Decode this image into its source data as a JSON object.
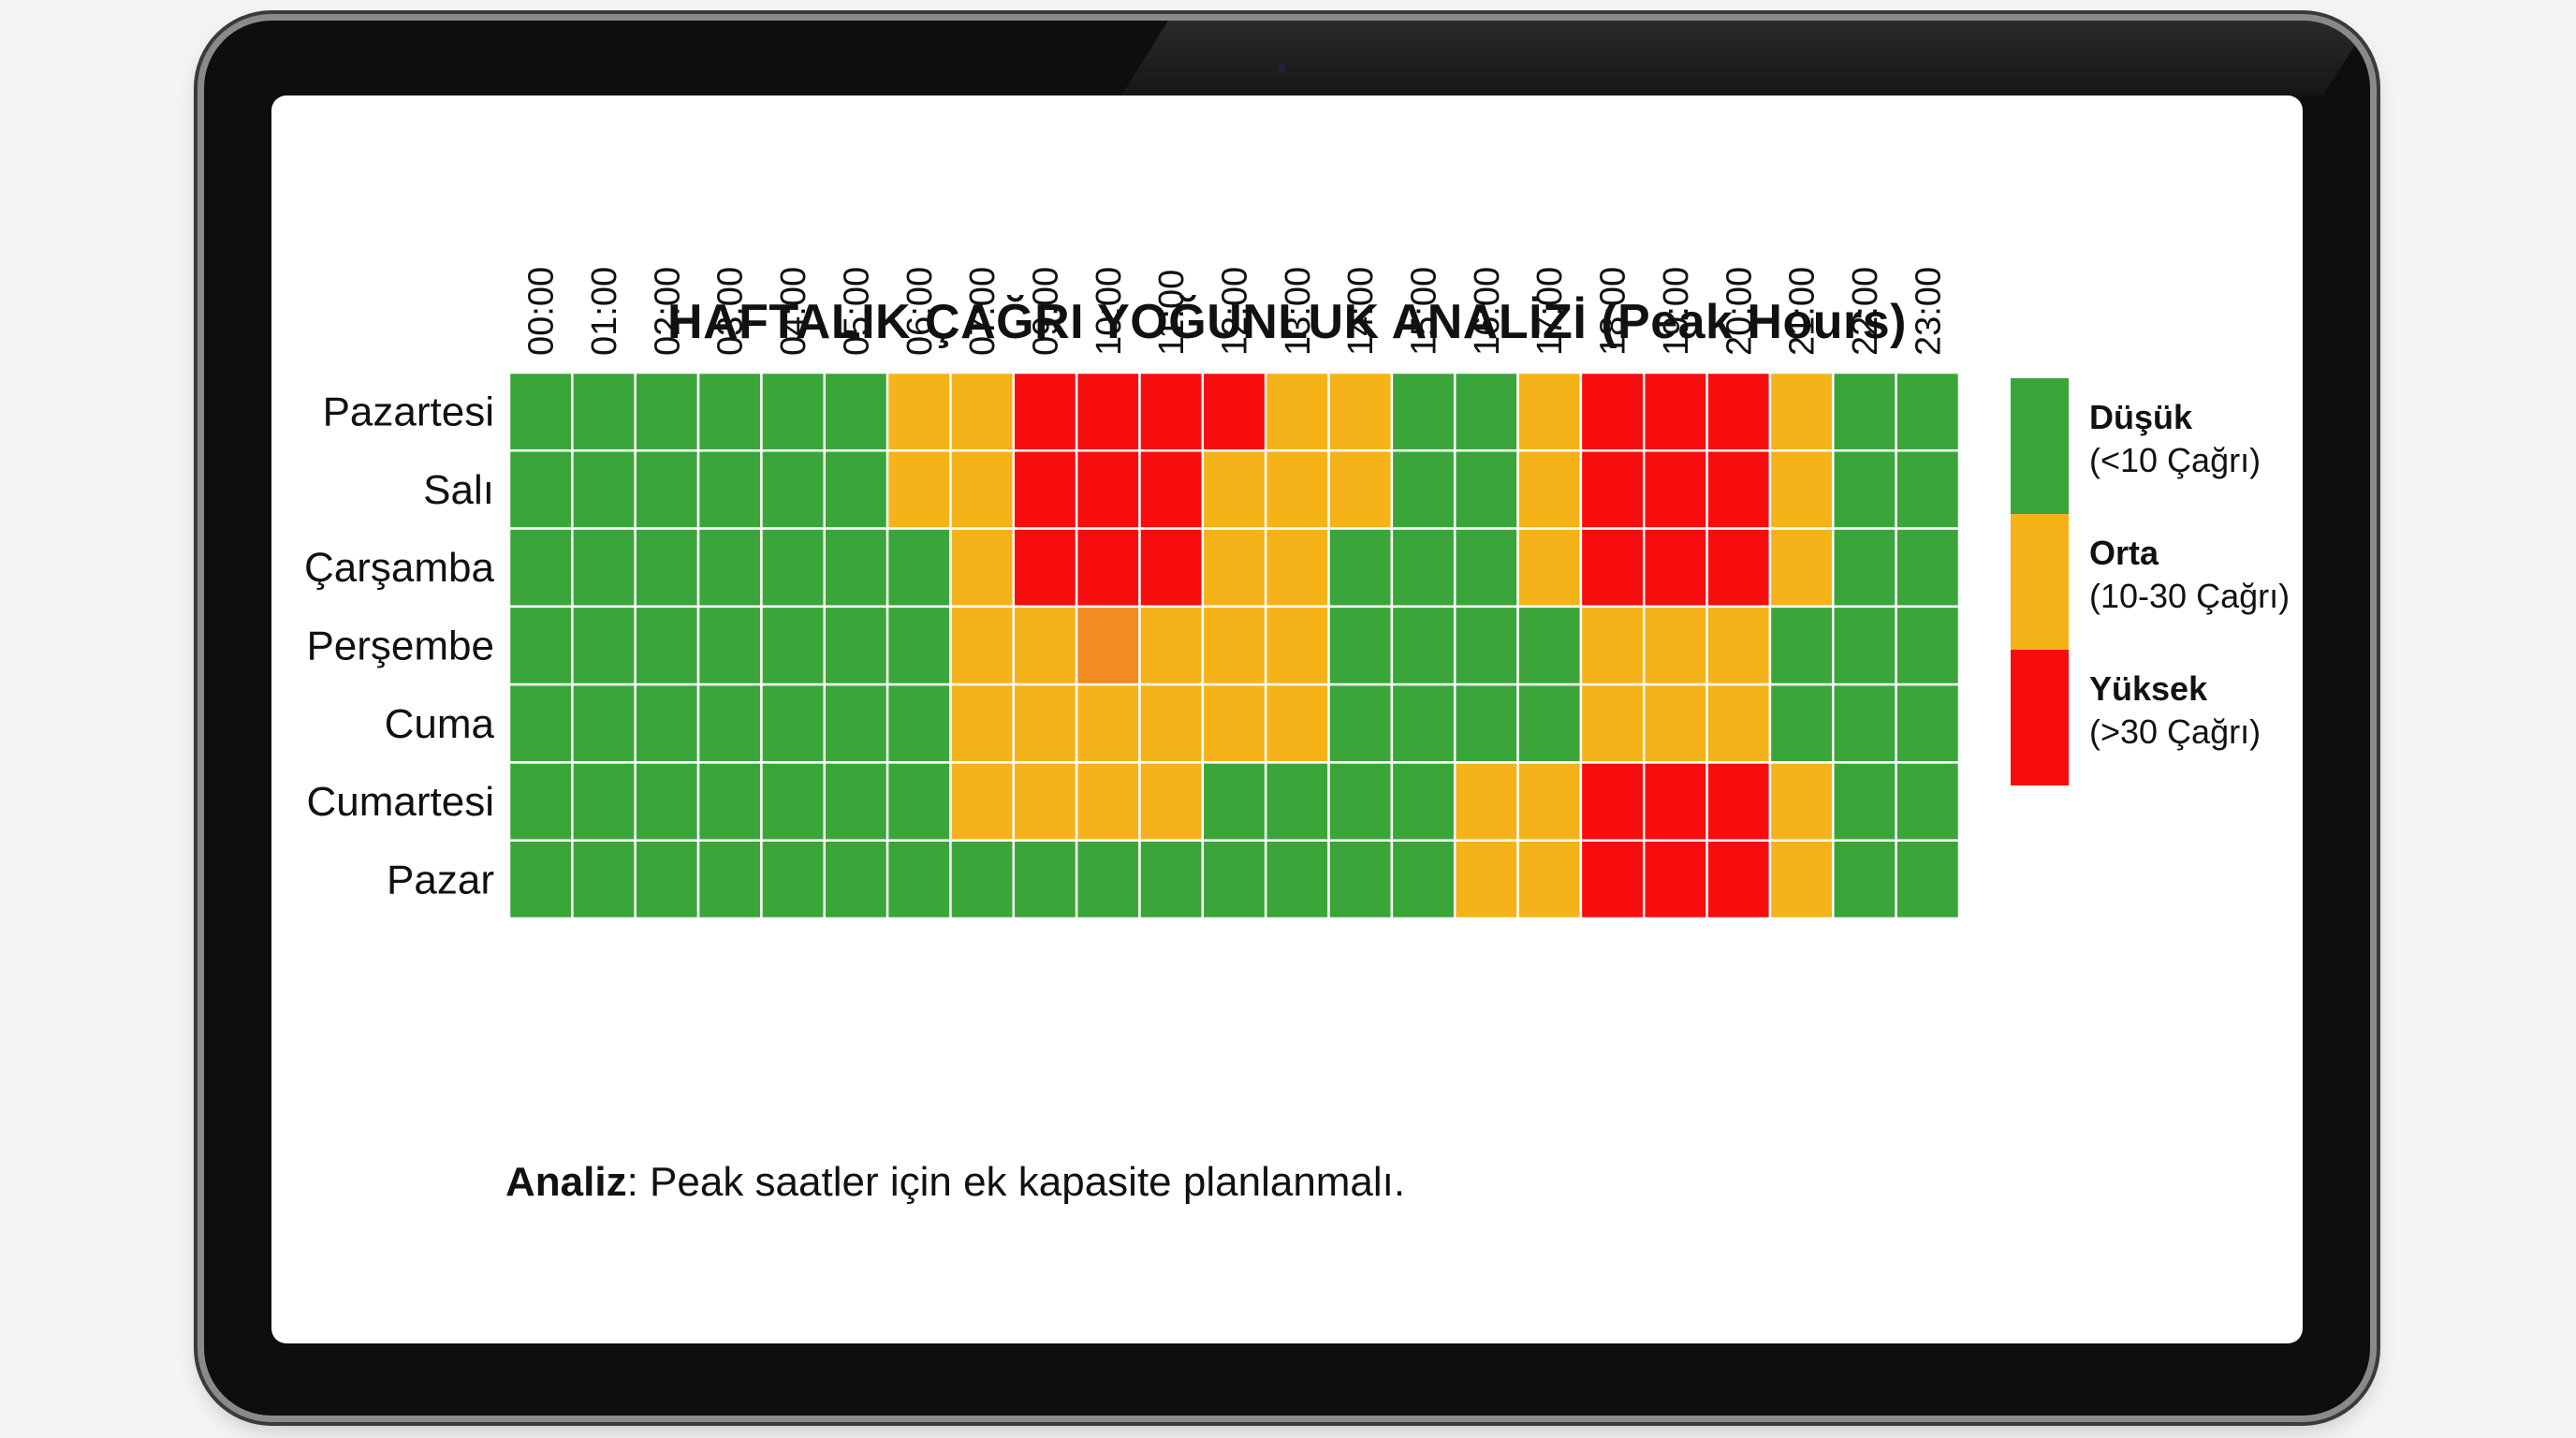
{
  "chart_data": {
    "type": "heatmap",
    "title": "HAFTALIK ÇAĞRI YOĞUNLUK ANALİZİ (Peak Hours)",
    "x_labels": [
      "00:00",
      "01:00",
      "02:00",
      "03:00",
      "04:00",
      "05:00",
      "06:00",
      "07:00",
      "09:00",
      "10:00",
      "11:00",
      "12:00",
      "13:00",
      "14:00",
      "15:00",
      "16:00",
      "17:00",
      "18:00",
      "19:00",
      "20:00",
      "21:00",
      "22:00",
      "23:00"
    ],
    "y_labels": [
      "Pazartesi",
      "Salı",
      "Çarşamba",
      "Perşembe",
      "Cuma",
      "Cumartesi",
      "Pazar"
    ],
    "values": [
      [
        "low",
        "low",
        "low",
        "low",
        "low",
        "low",
        "mid",
        "mid",
        "high",
        "high",
        "high",
        "high",
        "mid",
        "mid",
        "low",
        "low",
        "mid",
        "high",
        "high",
        "high",
        "mid",
        "low",
        "low"
      ],
      [
        "low",
        "low",
        "low",
        "low",
        "low",
        "low",
        "mid",
        "mid",
        "high",
        "high",
        "high",
        "mid",
        "mid",
        "mid",
        "low",
        "low",
        "mid",
        "high",
        "high",
        "high",
        "mid",
        "low",
        "low"
      ],
      [
        "low",
        "low",
        "low",
        "low",
        "low",
        "low",
        "low",
        "mid",
        "high",
        "high",
        "high",
        "mid",
        "mid",
        "low",
        "low",
        "low",
        "mid",
        "high",
        "high",
        "high",
        "mid",
        "low",
        "low"
      ],
      [
        "low",
        "low",
        "low",
        "low",
        "low",
        "low",
        "low",
        "mid",
        "mid",
        "peak",
        "mid",
        "mid",
        "mid",
        "low",
        "low",
        "low",
        "low",
        "mid",
        "mid",
        "mid",
        "low",
        "low",
        "low"
      ],
      [
        "low",
        "low",
        "low",
        "low",
        "low",
        "low",
        "low",
        "mid",
        "mid",
        "mid",
        "mid",
        "mid",
        "mid",
        "low",
        "low",
        "low",
        "low",
        "mid",
        "mid",
        "mid",
        "low",
        "low",
        "low"
      ],
      [
        "low",
        "low",
        "low",
        "low",
        "low",
        "low",
        "low",
        "mid",
        "mid",
        "mid",
        "mid",
        "low",
        "low",
        "low",
        "low",
        "mid",
        "mid",
        "high",
        "high",
        "high",
        "mid",
        "low",
        "low"
      ],
      [
        "low",
        "low",
        "low",
        "low",
        "low",
        "low",
        "low",
        "low",
        "low",
        "low",
        "low",
        "low",
        "low",
        "low",
        "low",
        "mid",
        "mid",
        "high",
        "high",
        "high",
        "mid",
        "low",
        "low"
      ]
    ],
    "colors": {
      "low": "#3aa639",
      "mid": "#f5b319",
      "high": "#f70d0d",
      "peak": "#f28b22"
    },
    "legend": [
      {
        "key": "low",
        "title": "Düşük",
        "desc": "(<10 Çağrı)"
      },
      {
        "key": "mid",
        "title": "Orta",
        "desc": "(10-30 Çağrı)"
      },
      {
        "key": "high",
        "title": "Yüksek",
        "desc": "(>30 Çağrı)"
      }
    ],
    "legend_position": "right"
  },
  "footer": {
    "analysis_label": "Analiz",
    "analysis_text": ": Peak saatler için ek kapasite planlanmalı."
  }
}
